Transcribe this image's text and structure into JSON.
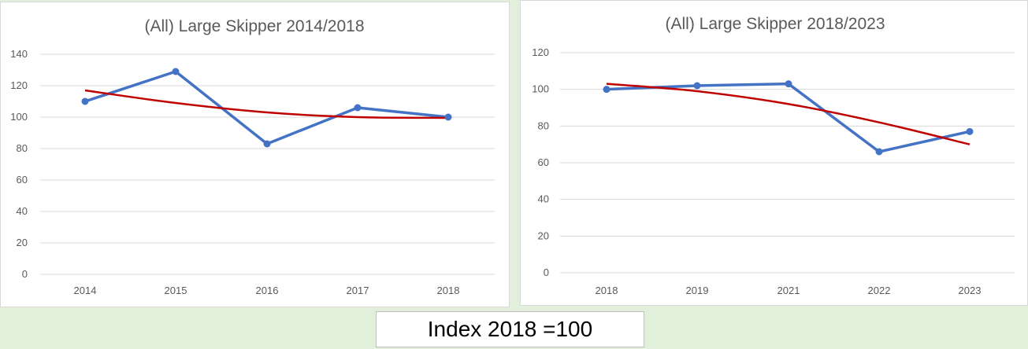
{
  "note": "Index 2018 =100",
  "colors": {
    "series": "#4472c4",
    "trend": "#c00000",
    "grid": "#d9d9d9",
    "text": "#595959"
  },
  "chart_data": [
    {
      "type": "line",
      "title": "(All) Large Skipper 2014/2018",
      "categories": [
        "2014",
        "2015",
        "2016",
        "2017",
        "2018"
      ],
      "series": [
        {
          "values": [
            110,
            129,
            83,
            106,
            100
          ]
        }
      ],
      "trendline": {
        "kind": "polynomial",
        "values": [
          117,
          109,
          103,
          100,
          99.5
        ]
      },
      "ylim": [
        0,
        140
      ],
      "yticks": [
        "0",
        "20",
        "40",
        "60",
        "80",
        "100",
        "120",
        "140"
      ],
      "grid": true,
      "xlabel": "",
      "ylabel": ""
    },
    {
      "type": "line",
      "title": "(All) Large Skipper 2018/2023",
      "categories": [
        "2018",
        "2019",
        "2021",
        "2022",
        "2023"
      ],
      "series": [
        {
          "values": [
            100,
            102,
            103,
            66,
            77
          ]
        }
      ],
      "trendline": {
        "kind": "polynomial",
        "values": [
          103,
          99,
          92,
          82,
          70
        ]
      },
      "ylim": [
        0,
        120
      ],
      "yticks": [
        "0",
        "20",
        "40",
        "60",
        "80",
        "100",
        "120"
      ],
      "grid": true,
      "xlabel": "",
      "ylabel": ""
    }
  ]
}
